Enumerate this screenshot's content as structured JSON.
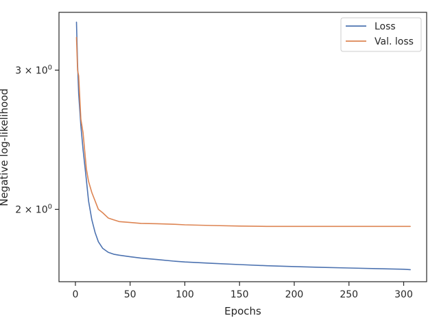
{
  "chart_data": {
    "type": "line",
    "title": "",
    "xlabel": "Epochs",
    "ylabel": "Negative log-likelihood",
    "yscale": "log",
    "xlim": [
      -15,
      321
    ],
    "ylim": [
      1.62,
      3.55
    ],
    "xticks": [
      0,
      50,
      100,
      150,
      200,
      250,
      300
    ],
    "xtick_labels": [
      "0",
      "50",
      "100",
      "150",
      "200",
      "250",
      "300"
    ],
    "yticks": [
      2,
      3
    ],
    "ytick_labels": [
      {
        "base": "2 × 10",
        "exp": "0"
      },
      {
        "base": "3 × 10",
        "exp": "0"
      }
    ],
    "grid": false,
    "legend_position": "top-right",
    "series": [
      {
        "name": "Loss",
        "color": "#4c72b0",
        "x": [
          1,
          2,
          3,
          5,
          7,
          10,
          12,
          15,
          18,
          21,
          25,
          30,
          35,
          40,
          50,
          60,
          75,
          90,
          100,
          125,
          150,
          175,
          200,
          225,
          250,
          275,
          300,
          306
        ],
        "y": [
          3.45,
          3.05,
          2.8,
          2.55,
          2.38,
          2.18,
          2.05,
          1.94,
          1.87,
          1.82,
          1.785,
          1.765,
          1.755,
          1.75,
          1.742,
          1.735,
          1.728,
          1.72,
          1.716,
          1.709,
          1.703,
          1.697,
          1.693,
          1.689,
          1.686,
          1.683,
          1.68,
          1.678
        ]
      },
      {
        "name": "Val. loss",
        "color": "#dd8452",
        "x": [
          1,
          2,
          3,
          5,
          7,
          10,
          12,
          15,
          18,
          21,
          25,
          30,
          35,
          40,
          50,
          60,
          75,
          90,
          100,
          125,
          150,
          175,
          200,
          225,
          250,
          275,
          300,
          306
        ],
        "y": [
          3.3,
          3.0,
          2.95,
          2.6,
          2.5,
          2.25,
          2.17,
          2.1,
          2.05,
          2.0,
          1.98,
          1.95,
          1.94,
          1.93,
          1.925,
          1.92,
          1.918,
          1.915,
          1.912,
          1.908,
          1.905,
          1.903,
          1.903,
          1.903,
          1.903,
          1.903,
          1.903,
          1.903
        ]
      }
    ]
  }
}
